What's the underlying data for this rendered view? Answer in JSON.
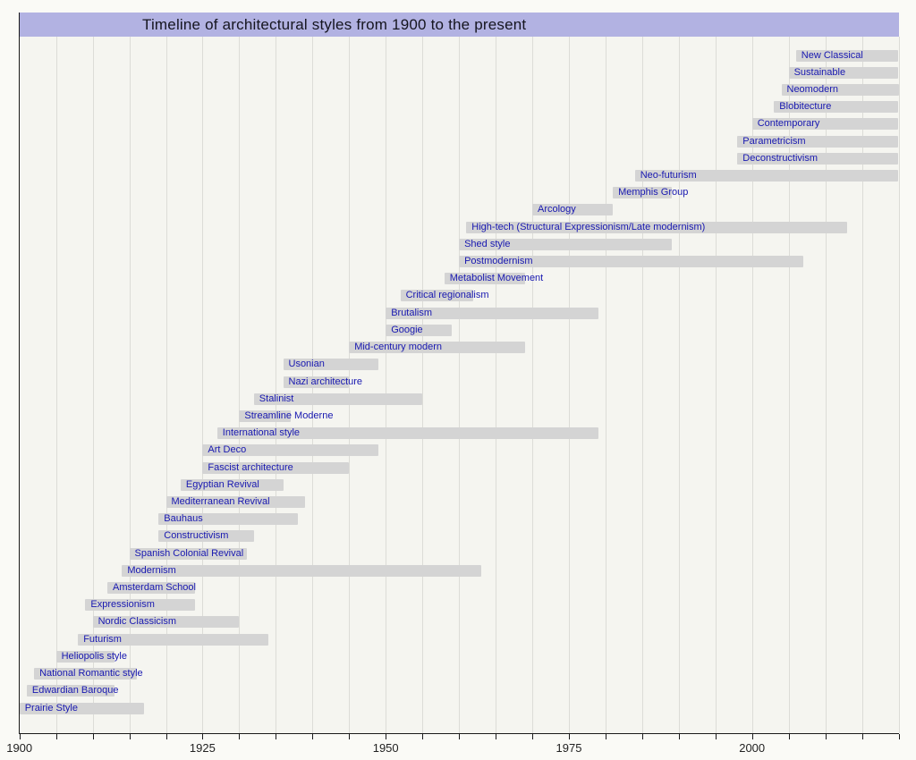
{
  "title": "Timeline of architectural styles from 1900 to the present",
  "chart_data": {
    "type": "bar",
    "variant": "horizontal-timeline-gantt",
    "title": "Timeline of architectural styles from 1900 to the present",
    "legend": "none",
    "grid": true,
    "axis": {
      "orientation": "x",
      "min": 1900,
      "max": 2020,
      "tick_step_years": 5,
      "labeled_ticks": [
        1900,
        1925,
        1950,
        1975,
        2000
      ],
      "present_year": 2020
    },
    "colors": {
      "bar": "#d4d4d4",
      "bar_label": "#1818b0",
      "title_background": "#b2b2e2",
      "title_text": "#15151f",
      "plot_background": "#f5f5f0",
      "gridline": "#dcdcd7",
      "axis_line": "#1a1a1a"
    },
    "styles": [
      {
        "label": "New Classical",
        "start": 2006,
        "end": "present"
      },
      {
        "label": "Sustainable",
        "start": 2005,
        "end": "present"
      },
      {
        "label": "Neomodern",
        "start": 2004,
        "end": "present"
      },
      {
        "label": "Blobitecture",
        "start": 2003,
        "end": "present"
      },
      {
        "label": "Contemporary",
        "start": 2000,
        "end": "present"
      },
      {
        "label": "Parametricism",
        "start": 1998,
        "end": "present"
      },
      {
        "label": "Deconstructivism",
        "start": 1998,
        "end": "present"
      },
      {
        "label": "Neo-futurism",
        "start": 1984,
        "end": "present"
      },
      {
        "label": "Memphis Group",
        "start": 1981,
        "end": 1989
      },
      {
        "label": "Arcology",
        "start": 1970,
        "end": 1981
      },
      {
        "label": "High-tech (Structural Expressionism/Late modernism)",
        "start": 1961,
        "end": 2013
      },
      {
        "label": "Shed style",
        "start": 1960,
        "end": 1989
      },
      {
        "label": "Postmodernism",
        "start": 1960,
        "end": 2007
      },
      {
        "label": "Metabolist Movement",
        "start": 1958,
        "end": 1969
      },
      {
        "label": "Critical regionalism",
        "start": 1952,
        "end": 1962
      },
      {
        "label": "Brutalism",
        "start": 1950,
        "end": 1979
      },
      {
        "label": "Googie",
        "start": 1950,
        "end": 1959
      },
      {
        "label": "Mid-century modern",
        "start": 1945,
        "end": 1969
      },
      {
        "label": "Usonian",
        "start": 1936,
        "end": 1949
      },
      {
        "label": "Nazi architecture",
        "start": 1936,
        "end": 1945
      },
      {
        "label": "Stalinist",
        "start": 1932,
        "end": 1955
      },
      {
        "label": "Streamline Moderne",
        "start": 1930,
        "end": 1937
      },
      {
        "label": "International style",
        "start": 1927,
        "end": 1979
      },
      {
        "label": "Art Deco",
        "start": 1925,
        "end": 1949
      },
      {
        "label": "Fascist architecture",
        "start": 1925,
        "end": 1945
      },
      {
        "label": "Egyptian Revival",
        "start": 1922,
        "end": 1936
      },
      {
        "label": "Mediterranean Revival",
        "start": 1920,
        "end": 1939
      },
      {
        "label": "Bauhaus",
        "start": 1919,
        "end": 1938
      },
      {
        "label": "Constructivism",
        "start": 1919,
        "end": 1932
      },
      {
        "label": "Spanish Colonial Revival",
        "start": 1915,
        "end": 1931
      },
      {
        "label": "Modernism",
        "start": 1914,
        "end": 1963
      },
      {
        "label": "Amsterdam School",
        "start": 1912,
        "end": 1924
      },
      {
        "label": "Expressionism",
        "start": 1909,
        "end": 1924
      },
      {
        "label": "Nordic Classicism",
        "start": 1910,
        "end": 1930
      },
      {
        "label": "Futurism",
        "start": 1908,
        "end": 1934
      },
      {
        "label": "Heliopolis style",
        "start": 1905,
        "end": 1913
      },
      {
        "label": "National Romantic style",
        "start": 1902,
        "end": 1916
      },
      {
        "label": "Edwardian Baroque",
        "start": 1901,
        "end": 1913
      },
      {
        "label": "Prairie Style",
        "start": 1900,
        "end": 1917
      }
    ]
  }
}
